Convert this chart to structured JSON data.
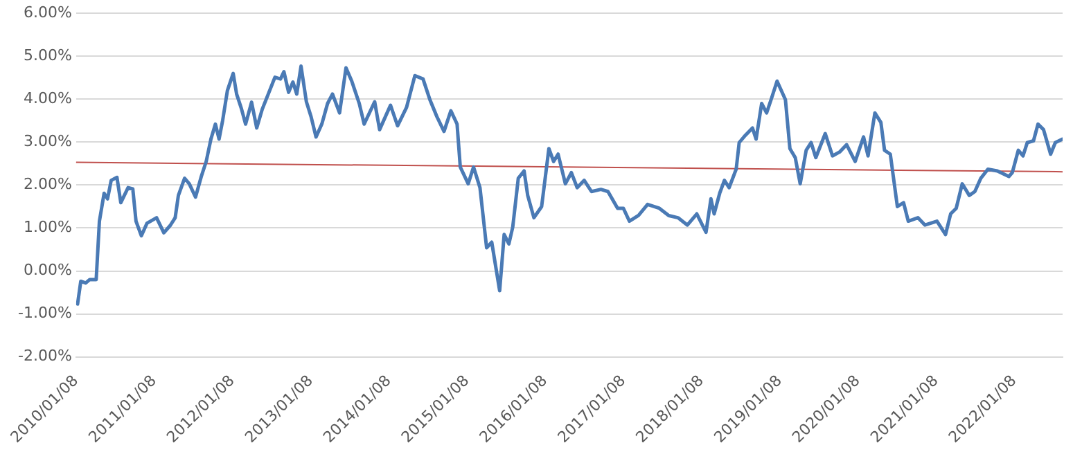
{
  "chart_data": {
    "type": "line",
    "xlim": [
      "2010-01-08",
      "2022-08-22"
    ],
    "xticks": [
      {
        "value": "2010-01-08",
        "label": "2010/01/08"
      },
      {
        "value": "2011-01-08",
        "label": "2011/01/08"
      },
      {
        "value": "2012-01-08",
        "label": "2012/01/08"
      },
      {
        "value": "2013-01-08",
        "label": "2013/01/08"
      },
      {
        "value": "2014-01-08",
        "label": "2014/01/08"
      },
      {
        "value": "2015-01-08",
        "label": "2015/01/08"
      },
      {
        "value": "2016-01-08",
        "label": "2016/01/08"
      },
      {
        "value": "2017-01-08",
        "label": "2017/01/08"
      },
      {
        "value": "2018-01-08",
        "label": "2018/01/08"
      },
      {
        "value": "2019-01-08",
        "label": "2019/01/08"
      },
      {
        "value": "2020-01-08",
        "label": "2020/01/08"
      },
      {
        "value": "2021-01-08",
        "label": "2021/01/08"
      },
      {
        "value": "2022-01-08",
        "label": "2022/01/08"
      }
    ],
    "ylim": [
      -2,
      6
    ],
    "yticks": [
      {
        "value": -2,
        "label": "-2.00%"
      },
      {
        "value": -1,
        "label": "-1.00%"
      },
      {
        "value": 0,
        "label": "0.00%"
      },
      {
        "value": 1,
        "label": "1.00%"
      },
      {
        "value": 2,
        "label": "2.00%"
      },
      {
        "value": 3,
        "label": "3.00%"
      },
      {
        "value": 4,
        "label": "4.00%"
      },
      {
        "value": 5,
        "label": "5.00%"
      },
      {
        "value": 6,
        "label": "6.00%"
      }
    ],
    "grid": "y",
    "marker": "none",
    "line_style": "solid",
    "series": [
      {
        "color": "#4a7ab5",
        "x": [
          "2010-01-15",
          "2010-01-30",
          "2010-02-22",
          "2010-03-13",
          "2010-04-12",
          "2010-04-27",
          "2010-05-19",
          "2010-06-04",
          "2010-06-21",
          "2010-07-18",
          "2010-08-05",
          "2010-09-08",
          "2010-09-30",
          "2010-10-15",
          "2010-11-09",
          "2010-12-05",
          "2011-01-19",
          "2011-02-22",
          "2011-03-24",
          "2011-04-16",
          "2011-05-01",
          "2011-05-30",
          "2011-06-21",
          "2011-07-20",
          "2011-08-16",
          "2011-09-08",
          "2011-09-30",
          "2011-10-21",
          "2011-11-07",
          "2011-11-24",
          "2011-12-16",
          "2012-01-12",
          "2012-01-28",
          "2012-02-20",
          "2012-03-10",
          "2012-04-07",
          "2012-05-01",
          "2012-05-27",
          "2012-06-24",
          "2012-07-25",
          "2012-08-20",
          "2012-09-05",
          "2012-09-27",
          "2012-10-17",
          "2012-11-04",
          "2012-11-24",
          "2012-12-19",
          "2013-01-10",
          "2013-02-02",
          "2013-03-01",
          "2013-03-28",
          "2013-04-20",
          "2013-05-23",
          "2013-06-22",
          "2013-07-19",
          "2013-08-23",
          "2013-09-15",
          "2013-11-03",
          "2013-11-26",
          "2014-01-16",
          "2014-02-18",
          "2014-04-01",
          "2014-05-10",
          "2014-06-17",
          "2014-07-19",
          "2014-08-21",
          "2014-09-23",
          "2014-10-25",
          "2014-11-23",
          "2014-12-08",
          "2015-01-14",
          "2015-02-08",
          "2015-03-10",
          "2015-04-10",
          "2015-05-04",
          "2015-06-10",
          "2015-07-01",
          "2015-07-23",
          "2015-08-10",
          "2015-09-05",
          "2015-10-02",
          "2015-10-19",
          "2015-11-17",
          "2015-12-23",
          "2016-01-26",
          "2016-02-17",
          "2016-03-09",
          "2016-04-12",
          "2016-05-10",
          "2016-06-06",
          "2016-07-09",
          "2016-08-12",
          "2016-09-25",
          "2016-10-28",
          "2016-12-12",
          "2017-01-08",
          "2017-02-05",
          "2017-03-19",
          "2017-05-01",
          "2017-06-25",
          "2017-08-08",
          "2017-09-20",
          "2017-11-03",
          "2017-12-17",
          "2018-01-29",
          "2018-02-21",
          "2018-03-08",
          "2018-04-03",
          "2018-04-25",
          "2018-05-17",
          "2018-06-19",
          "2018-07-03",
          "2018-08-01",
          "2018-09-03",
          "2018-09-20",
          "2018-10-16",
          "2018-11-08",
          "2018-11-29",
          "2018-12-27",
          "2019-02-04",
          "2019-02-25",
          "2019-03-22",
          "2019-04-14",
          "2019-05-12",
          "2019-06-04",
          "2019-06-26",
          "2019-08-09",
          "2019-09-12",
          "2019-10-15",
          "2019-11-17",
          "2019-12-27",
          "2020-02-04",
          "2020-02-25",
          "2020-03-28",
          "2020-04-25",
          "2020-05-12",
          "2020-06-08",
          "2020-07-11",
          "2020-08-09",
          "2020-08-31",
          "2020-10-15",
          "2020-11-17",
          "2021-01-12",
          "2021-02-21",
          "2021-03-17",
          "2021-04-12",
          "2021-05-10",
          "2021-06-12",
          "2021-07-08",
          "2021-08-05",
          "2021-09-07",
          "2021-10-21",
          "2021-12-14",
          "2021-12-30",
          "2022-01-27",
          "2022-02-18",
          "2022-03-10",
          "2022-04-08",
          "2022-04-29",
          "2022-05-25",
          "2022-06-27",
          "2022-07-19",
          "2022-08-21"
        ],
        "values": [
          -0.77,
          -0.24,
          -0.28,
          -0.2,
          -0.2,
          1.16,
          1.81,
          1.68,
          2.11,
          2.18,
          1.59,
          1.94,
          1.91,
          1.16,
          0.82,
          1.11,
          1.24,
          0.89,
          1.06,
          1.24,
          1.76,
          2.16,
          2.03,
          1.72,
          2.2,
          2.55,
          3.07,
          3.42,
          3.07,
          3.51,
          4.2,
          4.6,
          4.12,
          3.77,
          3.42,
          3.93,
          3.33,
          3.77,
          4.12,
          4.51,
          4.47,
          4.64,
          4.16,
          4.4,
          4.12,
          4.77,
          3.94,
          3.59,
          3.12,
          3.42,
          3.9,
          4.12,
          3.68,
          4.73,
          4.42,
          3.9,
          3.42,
          3.94,
          3.29,
          3.86,
          3.38,
          3.81,
          4.55,
          4.47,
          3.99,
          3.59,
          3.25,
          3.73,
          3.42,
          2.42,
          2.03,
          2.42,
          1.94,
          0.54,
          0.67,
          -0.46,
          0.85,
          0.63,
          1.02,
          2.16,
          2.33,
          1.76,
          1.24,
          1.5,
          2.85,
          2.55,
          2.72,
          2.03,
          2.29,
          1.94,
          2.11,
          1.85,
          1.9,
          1.85,
          1.46,
          1.46,
          1.16,
          1.29,
          1.55,
          1.46,
          1.29,
          1.24,
          1.07,
          1.33,
          0.9,
          1.68,
          1.33,
          1.81,
          2.11,
          1.94,
          2.37,
          2.99,
          3.16,
          3.33,
          3.07,
          3.9,
          3.68,
          3.99,
          4.42,
          3.99,
          2.85,
          2.64,
          2.03,
          2.81,
          2.99,
          2.64,
          3.2,
          2.68,
          2.77,
          2.94,
          2.55,
          3.12,
          2.68,
          3.68,
          3.46,
          2.81,
          2.72,
          1.5,
          1.59,
          1.16,
          1.24,
          1.07,
          1.16,
          0.85,
          1.33,
          1.46,
          2.03,
          1.76,
          1.85,
          2.16,
          2.37,
          2.33,
          2.2,
          2.29,
          2.81,
          2.68,
          2.99,
          3.03,
          3.42,
          3.29,
          2.72,
          2.99,
          3.07
        ]
      },
      {
        "color": "#c0504d",
        "x": [
          "2010-01-08",
          "2022-08-22"
        ],
        "values": [
          2.53,
          2.31
        ]
      }
    ]
  }
}
